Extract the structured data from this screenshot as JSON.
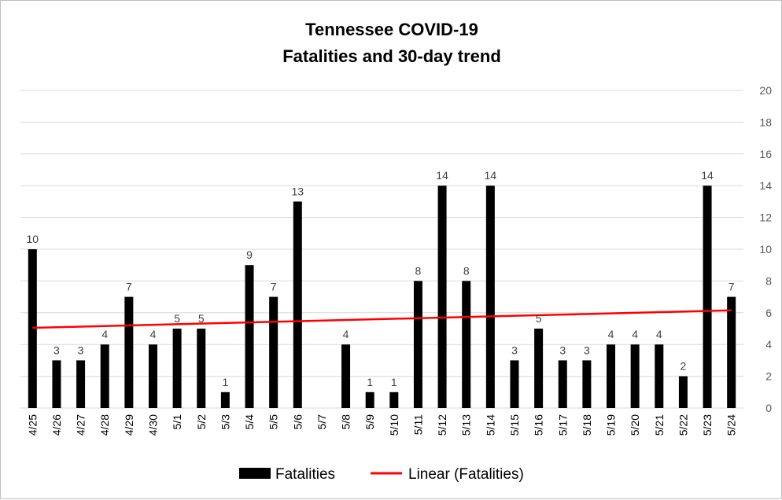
{
  "chart_data": {
    "type": "bar",
    "title_line1": "Tennessee COVID-19",
    "title_line2": "Fatalities and 30-day trend",
    "categories": [
      "4/25",
      "4/26",
      "4/27",
      "4/28",
      "4/29",
      "4/30",
      "5/1",
      "5/2",
      "5/3",
      "5/4",
      "5/5",
      "5/6",
      "5/7",
      "5/8",
      "5/9",
      "5/10",
      "5/11",
      "5/12",
      "5/13",
      "5/14",
      "5/15",
      "5/16",
      "5/17",
      "5/18",
      "5/19",
      "5/20",
      "5/21",
      "5/22",
      "5/23",
      "5/24"
    ],
    "series": [
      {
        "name": "Fatalities",
        "values": [
          10,
          3,
          3,
          4,
          7,
          4,
          5,
          5,
          1,
          9,
          7,
          13,
          null,
          4,
          1,
          1,
          8,
          14,
          8,
          14,
          3,
          5,
          3,
          3,
          4,
          4,
          4,
          2,
          14,
          7
        ],
        "color": "#000000"
      }
    ],
    "trendline": {
      "name": "Linear (Fatalities)",
      "type": "linear",
      "start_value": 5.05,
      "end_value": 6.15,
      "color": "#ff0000"
    },
    "ylim": [
      0,
      20
    ],
    "yticks": [
      0,
      2,
      4,
      6,
      8,
      10,
      12,
      14,
      16,
      18,
      20
    ],
    "y_axis_side": "right",
    "grid": true,
    "legend_position": "bottom",
    "data_labels": true
  }
}
